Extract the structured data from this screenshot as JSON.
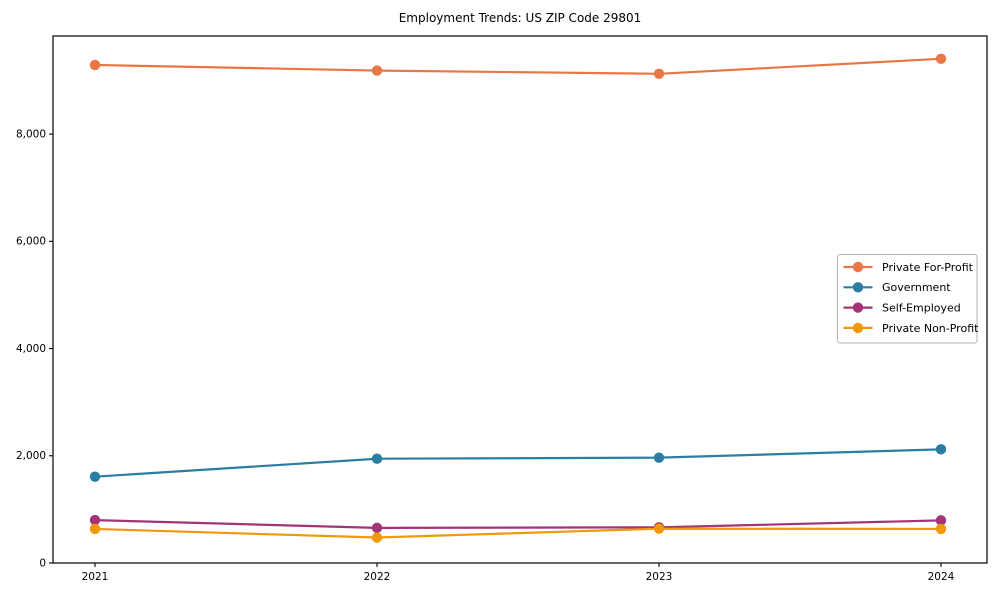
{
  "chart_data": {
    "type": "line",
    "title": "Employment Trends: US ZIP Code 29801",
    "x": [
      2021,
      2022,
      2023,
      2024
    ],
    "x_tick_labels": [
      "2021",
      "2022",
      "2023",
      "2024"
    ],
    "y_ticks": [
      0,
      2000,
      4000,
      6000,
      8000
    ],
    "y_tick_labels": [
      "0",
      "2,000",
      "4,000",
      "6,000",
      "8,000"
    ],
    "ylim": [
      0,
      9830
    ],
    "grid": false,
    "legend_position": "center-right",
    "marker": "circle",
    "series": [
      {
        "name": "Private For-Profit",
        "color": "#e87745",
        "values": [
          9290,
          9185,
          9125,
          9405
        ]
      },
      {
        "name": "Government",
        "color": "#2b7ea1",
        "values": [
          1610,
          1945,
          1965,
          2120
        ]
      },
      {
        "name": "Self-Employed",
        "color": "#a23477",
        "values": [
          800,
          655,
          665,
          795
        ]
      },
      {
        "name": "Private Non-Profit",
        "color": "#f0990a",
        "values": [
          635,
          475,
          640,
          635
        ]
      }
    ],
    "axis_color": "#000000",
    "legend_border_color": "#b3b3b3"
  }
}
